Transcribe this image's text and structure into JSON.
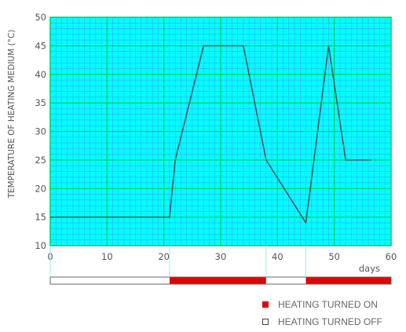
{
  "chart_data": {
    "type": "line",
    "ylabel": "TEMPERATURE OF HEATING MEDIUM (°C)",
    "xlabel": "days",
    "xlim": [
      0,
      60
    ],
    "ylim": [
      10,
      50
    ],
    "x_ticks": [
      0,
      10,
      20,
      30,
      40,
      50,
      60
    ],
    "y_ticks": [
      10,
      15,
      20,
      25,
      30,
      35,
      40,
      45,
      50
    ],
    "grid": true,
    "series": [
      {
        "color": "#555555",
        "points": [
          [
            0,
            15
          ],
          [
            21,
            15
          ],
          [
            22,
            25
          ],
          [
            27,
            45
          ],
          [
            34,
            45
          ],
          [
            38,
            25
          ],
          [
            45,
            14
          ],
          [
            49,
            45
          ],
          [
            52,
            25
          ],
          [
            56.5,
            25
          ]
        ]
      }
    ],
    "heating_periods": [
      {
        "from": 0,
        "to": 21,
        "state": "off"
      },
      {
        "from": 21,
        "to": 38,
        "state": "on"
      },
      {
        "from": 38,
        "to": 45,
        "state": "off"
      },
      {
        "from": 45,
        "to": 60,
        "state": "on"
      }
    ]
  },
  "legend": {
    "on_label": "HEATING TURNED ON",
    "off_label": "HEATING TURNED OFF"
  },
  "colors": {
    "plot_background": "#00ffff",
    "grid_minor": "#33aaff",
    "grid_major": "#00cc66",
    "line": "#555555",
    "heating_on": "#e00000",
    "heating_off": "#ffffff"
  }
}
